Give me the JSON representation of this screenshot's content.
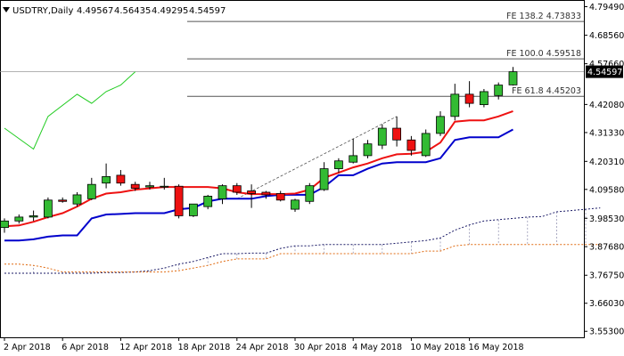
{
  "header": {
    "symbol_label": "USDTRY,Daily",
    "ohlc": [
      "4.49567",
      "4.56435",
      "4.49295",
      "4.54597"
    ]
  },
  "price_badge": "4.54597",
  "colors": {
    "bull_candle": "#33bb33",
    "bear_candle": "#ee1111",
    "candle_outline": "#000000",
    "tenkan": "#ee1111",
    "kijun": "#0000cc",
    "chikou": "#22cc22",
    "cloud_span_a": "#1a1a66",
    "cloud_span_b": "#e06a10",
    "fib_line": "#555555",
    "badge_bg": "#000000"
  },
  "chart_data": {
    "type": "candlestick",
    "y_axis": {
      "min": 3.53,
      "max": 4.8,
      "ticks": [
        "4.79490",
        "4.68560",
        "4.57660",
        "4.42080",
        "4.31330",
        "4.20310",
        "4.09580",
        "3.98530",
        "3.87680",
        "3.76750",
        "3.66030",
        "3.55300"
      ]
    },
    "x_axis": {
      "labels": [
        {
          "index": 0,
          "text": "2 Apr 2018"
        },
        {
          "index": 4,
          "text": "6 Apr 2018"
        },
        {
          "index": 8,
          "text": "12 Apr 2018"
        },
        {
          "index": 12,
          "text": "18 Apr 2018"
        },
        {
          "index": 16,
          "text": "24 Apr 2018"
        },
        {
          "index": 20,
          "text": "30 Apr 2018"
        },
        {
          "index": 24,
          "text": "4 May 2018"
        },
        {
          "index": 28,
          "text": "10 May 2018"
        },
        {
          "index": 32,
          "text": "16 May 2018"
        }
      ]
    },
    "candles": [
      {
        "o": 3.95,
        "h": 3.985,
        "l": 3.93,
        "c": 3.975
      },
      {
        "o": 3.975,
        "h": 4.0,
        "l": 3.965,
        "c": 3.99
      },
      {
        "o": 3.99,
        "h": 4.015,
        "l": 3.975,
        "c": 3.995
      },
      {
        "o": 3.99,
        "h": 4.065,
        "l": 3.985,
        "c": 4.055
      },
      {
        "o": 4.055,
        "h": 4.065,
        "l": 4.045,
        "c": 4.05
      },
      {
        "o": 4.04,
        "h": 4.085,
        "l": 4.03,
        "c": 4.075
      },
      {
        "o": 4.06,
        "h": 4.14,
        "l": 4.055,
        "c": 4.115
      },
      {
        "o": 4.12,
        "h": 4.195,
        "l": 4.1,
        "c": 4.145
      },
      {
        "o": 4.15,
        "h": 4.17,
        "l": 4.11,
        "c": 4.12
      },
      {
        "o": 4.115,
        "h": 4.125,
        "l": 4.09,
        "c": 4.1
      },
      {
        "o": 4.105,
        "h": 4.125,
        "l": 4.095,
        "c": 4.11
      },
      {
        "o": 4.105,
        "h": 4.14,
        "l": 4.095,
        "c": 4.108
      },
      {
        "o": 4.108,
        "h": 4.115,
        "l": 3.985,
        "c": 3.995
      },
      {
        "o": 3.995,
        "h": 4.04,
        "l": 3.99,
        "c": 4.04
      },
      {
        "o": 4.03,
        "h": 4.075,
        "l": 4.02,
        "c": 4.07
      },
      {
        "o": 4.06,
        "h": 4.115,
        "l": 4.04,
        "c": 4.11
      },
      {
        "o": 4.11,
        "h": 4.12,
        "l": 4.075,
        "c": 4.085
      },
      {
        "o": 4.09,
        "h": 4.115,
        "l": 4.025,
        "c": 4.08
      },
      {
        "o": 4.085,
        "h": 4.09,
        "l": 4.06,
        "c": 4.075
      },
      {
        "o": 4.08,
        "h": 4.09,
        "l": 4.05,
        "c": 4.055
      },
      {
        "o": 4.02,
        "h": 4.06,
        "l": 4.01,
        "c": 4.055
      },
      {
        "o": 4.05,
        "h": 4.12,
        "l": 4.04,
        "c": 4.11
      },
      {
        "o": 4.095,
        "h": 4.2,
        "l": 4.09,
        "c": 4.175
      },
      {
        "o": 4.175,
        "h": 4.215,
        "l": 4.16,
        "c": 4.205
      },
      {
        "o": 4.2,
        "h": 4.29,
        "l": 4.195,
        "c": 4.225
      },
      {
        "o": 4.225,
        "h": 4.285,
        "l": 4.215,
        "c": 4.27
      },
      {
        "o": 4.265,
        "h": 4.345,
        "l": 4.25,
        "c": 4.33
      },
      {
        "o": 4.33,
        "h": 4.375,
        "l": 4.26,
        "c": 4.285
      },
      {
        "o": 4.285,
        "h": 4.3,
        "l": 4.225,
        "c": 4.245
      },
      {
        "o": 4.225,
        "h": 4.325,
        "l": 4.22,
        "c": 4.31
      },
      {
        "o": 4.31,
        "h": 4.395,
        "l": 4.3,
        "c": 4.375
      },
      {
        "o": 4.375,
        "h": 4.5,
        "l": 4.36,
        "c": 4.46
      },
      {
        "o": 4.46,
        "h": 4.51,
        "l": 4.41,
        "c": 4.425
      },
      {
        "o": 4.42,
        "h": 4.48,
        "l": 4.41,
        "c": 4.47
      },
      {
        "o": 4.455,
        "h": 4.505,
        "l": 4.44,
        "c": 4.495
      },
      {
        "o": 4.49567,
        "h": 4.56435,
        "l": 4.49295,
        "c": 4.54597
      }
    ],
    "tenkan": [
      3.955,
      3.958,
      3.972,
      3.99,
      4.005,
      4.03,
      4.06,
      4.08,
      4.085,
      4.095,
      4.1,
      4.105,
      4.105,
      4.105,
      4.105,
      4.1,
      4.085,
      4.078,
      4.078,
      4.078,
      4.08,
      4.095,
      4.14,
      4.16,
      4.18,
      4.195,
      4.215,
      4.23,
      4.232,
      4.24,
      4.275,
      4.355,
      4.36,
      4.36,
      4.375,
      4.395
    ],
    "kijun": [
      3.9,
      3.9,
      3.905,
      3.915,
      3.92,
      3.92,
      3.985,
      4.0,
      4.002,
      4.005,
      4.005,
      4.005,
      4.02,
      4.025,
      4.05,
      4.06,
      4.06,
      4.06,
      4.07,
      4.075,
      4.075,
      4.075,
      4.105,
      4.15,
      4.15,
      4.175,
      4.195,
      4.2,
      4.2,
      4.2,
      4.215,
      4.285,
      4.295,
      4.295,
      4.295,
      4.325
    ],
    "chikou": [
      {
        "i": 0,
        "v": 4.33
      },
      {
        "i": 2,
        "v": 4.25
      },
      {
        "i": 3,
        "v": 4.375
      },
      {
        "i": 5,
        "v": 4.46
      },
      {
        "i": 6,
        "v": 4.425
      },
      {
        "i": 7,
        "v": 4.47
      },
      {
        "i": 8,
        "v": 4.495
      },
      {
        "i": 9,
        "v": 4.546
      }
    ],
    "span_a": [
      3.775,
      3.775,
      3.775,
      3.775,
      3.775,
      3.775,
      3.775,
      3.778,
      3.778,
      3.78,
      3.785,
      3.795,
      3.81,
      3.82,
      3.835,
      3.85,
      3.85,
      3.852,
      3.852,
      3.87,
      3.88,
      3.88,
      3.885,
      3.885,
      3.885,
      3.885,
      3.885,
      3.89,
      3.895,
      3.9,
      3.91,
      3.94,
      3.96,
      3.975,
      3.98,
      3.985,
      3.99,
      3.992,
      4.01,
      4.015,
      4.02,
      4.025
    ],
    "span_b": [
      3.81,
      3.81,
      3.805,
      3.795,
      3.78,
      3.78,
      3.78,
      3.78,
      3.78,
      3.78,
      3.78,
      3.78,
      3.785,
      3.795,
      3.805,
      3.82,
      3.83,
      3.83,
      3.83,
      3.85,
      3.85,
      3.85,
      3.85,
      3.85,
      3.85,
      3.85,
      3.85,
      3.85,
      3.85,
      3.86,
      3.86,
      3.88,
      3.885,
      3.885,
      3.885,
      3.885,
      3.885,
      3.885,
      3.885,
      3.885,
      3.885,
      3.885
    ],
    "trendline": {
      "from": {
        "i": 16,
        "v": 4.06
      },
      "to": {
        "i": 27,
        "v": 4.375
      }
    },
    "fib_levels": [
      {
        "label": "FE 138.2 4.73833",
        "value": 4.73833
      },
      {
        "label": "FE 100.0 4.59518",
        "value": 4.59518
      },
      {
        "label": "FE 61.8 4.45203",
        "value": 4.45203
      }
    ]
  }
}
